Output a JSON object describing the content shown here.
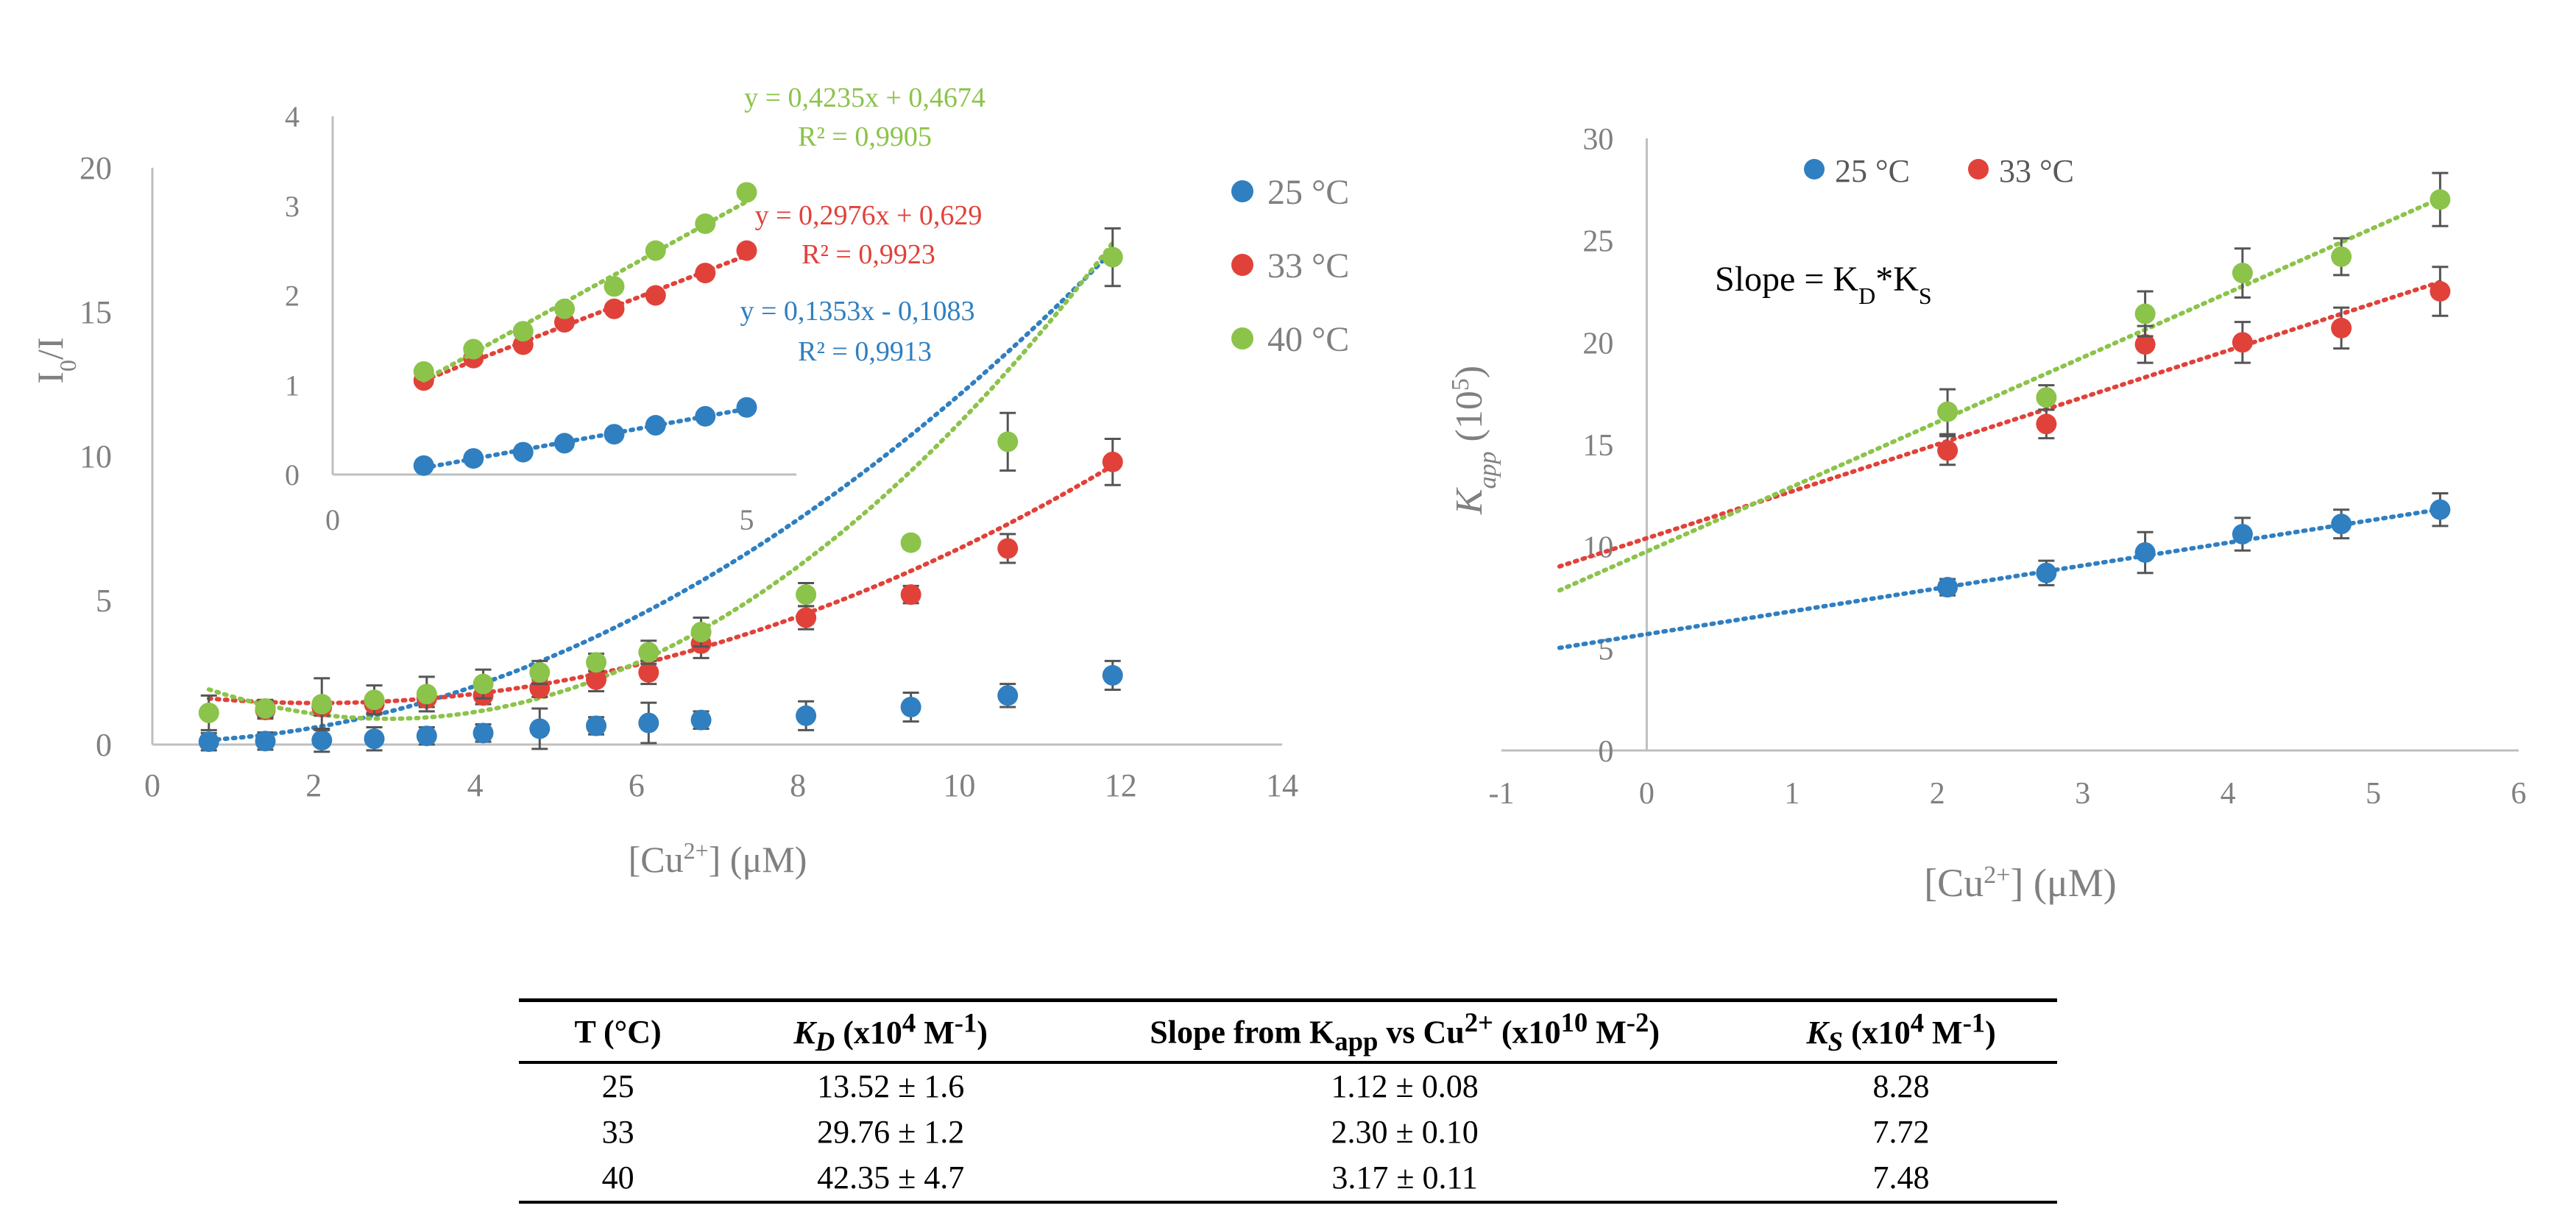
{
  "colors": {
    "c25": "#2f7fc1",
    "c33": "#e0423a",
    "c40": "#8cc34a",
    "axis": "#bfbfbf",
    "text": "#808080"
  },
  "chart_data": [
    {
      "type": "scatter",
      "id": "main",
      "xlabel": "[Cu2+] (μM)",
      "ylabel": "I0/I",
      "xlim": [
        0,
        14
      ],
      "ylim": [
        0,
        20
      ],
      "xticks": [
        0,
        2,
        4,
        6,
        8,
        10,
        12,
        14
      ],
      "yticks": [
        0,
        5,
        10,
        15,
        20
      ],
      "legend": "right",
      "series": [
        {
          "name": "25 °C",
          "color": "#2f7fc1",
          "x": [
            0.7,
            1.4,
            2.1,
            2.75,
            3.4,
            4.1,
            4.8,
            5.5,
            6.15,
            6.8,
            8.1,
            9.4,
            10.6,
            11.9
          ],
          "y": [
            0.1,
            0.12,
            0.15,
            0.2,
            0.3,
            0.4,
            0.55,
            0.65,
            0.75,
            0.85,
            1.0,
            1.3,
            1.7,
            2.4
          ],
          "err": [
            0.3,
            0.3,
            0.4,
            0.4,
            0.3,
            0.3,
            0.7,
            0.3,
            0.7,
            0.3,
            0.5,
            0.5,
            0.4,
            0.5
          ],
          "trend": [
            0.1,
            0.0025,
            0.12
          ]
        },
        {
          "name": "33 °C",
          "color": "#e0423a",
          "x": [
            1.4,
            2.1,
            2.75,
            3.4,
            4.1,
            4.8,
            5.5,
            6.15,
            6.8,
            8.1,
            9.4,
            10.6,
            11.9
          ],
          "y": [
            1.2,
            1.3,
            1.4,
            1.6,
            1.7,
            1.95,
            2.25,
            2.5,
            3.5,
            4.4,
            5.2,
            6.8,
            9.8
          ],
          "err": [
            0.3,
            0.3,
            0.3,
            0.3,
            0.3,
            0.3,
            0.4,
            0.4,
            0.5,
            0.4,
            0.3,
            0.5,
            0.8
          ],
          "trend": [
            1.8,
            -0.35,
            0.085
          ]
        },
        {
          "name": "40 °C",
          "color": "#8cc34a",
          "x": [
            0.7,
            1.4,
            2.1,
            2.75,
            3.4,
            4.1,
            4.8,
            5.5,
            6.15,
            6.8,
            8.1,
            9.4,
            10.6,
            11.9
          ],
          "y": [
            1.1,
            1.25,
            1.4,
            1.55,
            1.75,
            2.1,
            2.5,
            2.85,
            3.2,
            3.9,
            5.2,
            7.0,
            10.5,
            16.9
          ],
          "err": [
            0.6,
            0.3,
            0.9,
            0.5,
            0.6,
            0.5,
            0.4,
            0.3,
            0.4,
            0.5,
            0.4,
            0.2,
            1.0,
            1.0
          ],
          "trend": [
            2.65,
            -1.2,
            0.205
          ]
        }
      ]
    },
    {
      "type": "scatter",
      "id": "inset",
      "xlim": [
        0,
        5.6
      ],
      "ylim": [
        0,
        4
      ],
      "xticks": [
        0,
        5
      ],
      "yticks": [
        0,
        1,
        2,
        3,
        4
      ],
      "series": [
        {
          "name": "25 °C",
          "color": "#2f7fc1",
          "x": [
            1.1,
            1.7,
            2.3,
            2.8,
            3.4,
            3.9,
            4.5,
            5.0
          ],
          "y": [
            0.1,
            0.18,
            0.25,
            0.35,
            0.45,
            0.55,
            0.65,
            0.75
          ]
        },
        {
          "name": "33 °C",
          "color": "#e0423a",
          "x": [
            1.1,
            1.7,
            2.3,
            2.8,
            3.4,
            3.9,
            4.5,
            5.0
          ],
          "y": [
            1.05,
            1.3,
            1.45,
            1.7,
            1.85,
            2.0,
            2.25,
            2.5
          ]
        },
        {
          "name": "40 °C",
          "color": "#8cc34a",
          "x": [
            1.1,
            1.7,
            2.3,
            2.8,
            3.4,
            3.9,
            4.5,
            5.0
          ],
          "y": [
            1.15,
            1.4,
            1.6,
            1.85,
            2.1,
            2.5,
            2.8,
            3.15
          ]
        }
      ],
      "equations": [
        {
          "eq": "y = 0,4235x + 0,4674",
          "r2": "R² = 0,9905",
          "color": "#8cc34a"
        },
        {
          "eq": "y = 0,2976x + 0,629",
          "r2": "R² = 0,9923",
          "color": "#e0423a"
        },
        {
          "eq": "y = 0,1353x - 0,1083",
          "r2": "R² = 0,9913",
          "color": "#2f7fc1"
        }
      ]
    },
    {
      "type": "scatter",
      "id": "kapp",
      "xlabel": "[Cu2+] (μM)",
      "ylabel": "Kapp (105)",
      "xlim": [
        -1,
        6
      ],
      "ylim": [
        0,
        30
      ],
      "xticks": [
        -1,
        0,
        1,
        2,
        3,
        4,
        5,
        6
      ],
      "yticks": [
        0,
        5,
        10,
        15,
        20,
        25,
        30
      ],
      "legend": "top",
      "annotation": "Slope = KD*KS",
      "series": [
        {
          "name": "25 °C",
          "color": "#2f7fc1",
          "x": [
            2.07,
            2.75,
            3.43,
            4.1,
            4.78,
            5.46
          ],
          "y": [
            8.0,
            8.7,
            9.7,
            10.6,
            11.1,
            11.8
          ],
          "err": [
            0.4,
            0.6,
            1.0,
            0.8,
            0.7,
            0.8
          ],
          "trend": [
            5.7,
            1.12
          ]
        },
        {
          "name": "33 °C",
          "color": "#e0423a",
          "x": [
            2.07,
            2.75,
            3.43,
            4.1,
            4.78,
            5.46
          ],
          "y": [
            14.7,
            16.0,
            19.9,
            20.0,
            20.7,
            22.5
          ],
          "err": [
            0.7,
            0.7,
            0.9,
            1.0,
            1.0,
            1.2
          ],
          "trend": [
            10.4,
            2.3
          ]
        },
        {
          "name": "40 °C",
          "color": "#8cc34a",
          "x": [
            2.07,
            2.75,
            3.43,
            4.1,
            4.78,
            5.46
          ],
          "y": [
            16.6,
            17.3,
            21.4,
            23.4,
            24.2,
            27.0
          ],
          "err": [
            1.1,
            0.6,
            1.1,
            1.2,
            0.9,
            1.3
          ],
          "trend": [
            9.75,
            3.17
          ]
        }
      ]
    }
  ],
  "table": {
    "headers": {
      "t": "T (°C)",
      "kd": "KD (x104 M-1)",
      "slope": "Slope from Kapp vs Cu2+ (x1010 M-2)",
      "ks": "KS (x104 M-1)"
    },
    "rows": [
      {
        "t": "25",
        "kd": "13.52 ± 1.6",
        "slope": "1.12 ± 0.08",
        "ks": "8.28"
      },
      {
        "t": "33",
        "kd": "29.76 ± 1.2",
        "slope": "2.30 ± 0.10",
        "ks": "7.72"
      },
      {
        "t": "40",
        "kd": "42.35 ± 4.7",
        "slope": "3.17 ± 0.11",
        "ks": "7.48"
      }
    ]
  }
}
